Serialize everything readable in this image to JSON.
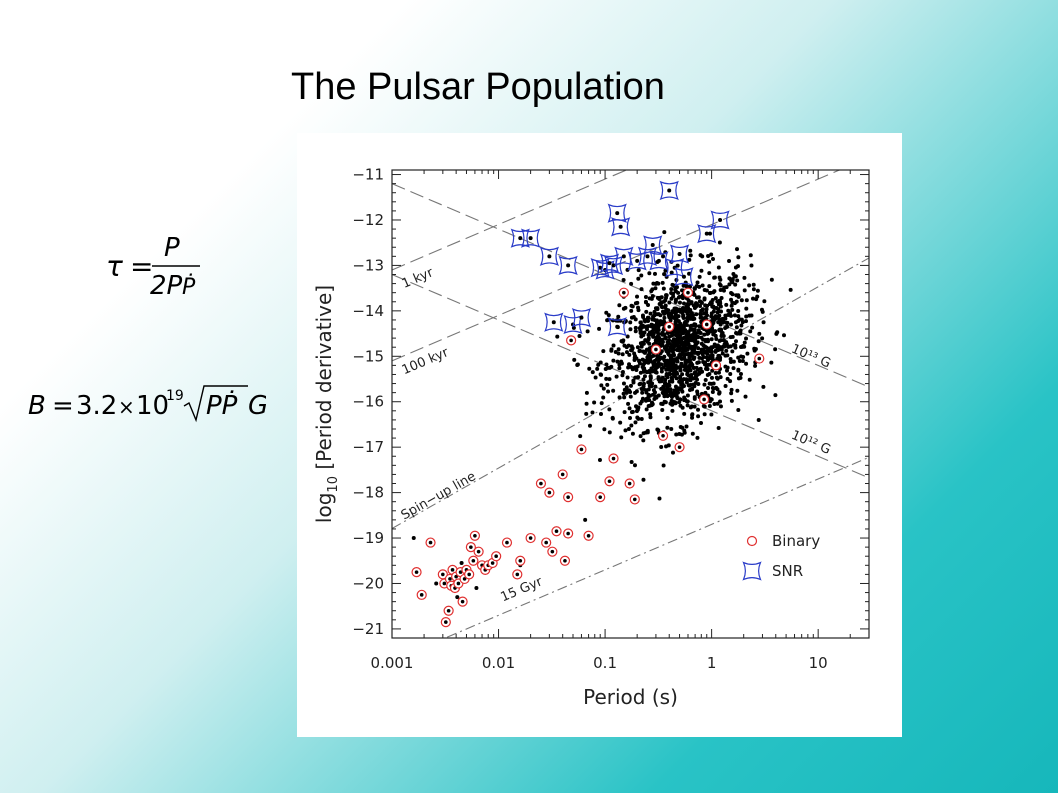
{
  "slide": {
    "title": "The Pulsar Population"
  },
  "formulas": {
    "tau": {
      "lhs": "τ",
      "eq": "=",
      "num": "P",
      "den": "2P",
      "dot": "Ṗ"
    },
    "field": {
      "lhs": "B",
      "eq": "=",
      "coef": "3.2",
      "times": "×",
      "base": "10",
      "exp": "19",
      "radicand": "PṖ",
      "unit": "G"
    }
  },
  "chart_data": {
    "type": "scatter",
    "x_scale": "log",
    "xlabel": "Period (s)",
    "ylabel": "log10 [Period derivative]",
    "xlim": [
      0.001,
      30
    ],
    "ylim": [
      -21.2,
      -10.9
    ],
    "x_ticks": [
      {
        "value": 0.001,
        "label": "0.001"
      },
      {
        "value": 0.01,
        "label": "0.01"
      },
      {
        "value": 0.1,
        "label": "0.1"
      },
      {
        "value": 1,
        "label": "1"
      },
      {
        "value": 10,
        "label": "10"
      }
    ],
    "y_ticks": [
      {
        "value": -11,
        "label": "−11"
      },
      {
        "value": -12,
        "label": "−12"
      },
      {
        "value": -13,
        "label": "−13"
      },
      {
        "value": -14,
        "label": "−14"
      },
      {
        "value": -15,
        "label": "−15"
      },
      {
        "value": -16,
        "label": "−16"
      },
      {
        "value": -17,
        "label": "−17"
      },
      {
        "value": -18,
        "label": "−18"
      },
      {
        "value": -19,
        "label": "−19"
      },
      {
        "value": -20,
        "label": "−20"
      },
      {
        "value": -21,
        "label": "−21"
      }
    ],
    "legend": {
      "position": "bottom-right",
      "entries": [
        {
          "name": "Binary",
          "marker": "circle",
          "color": "#e03030"
        },
        {
          "name": "SNR",
          "marker": "star",
          "color": "#2a3cc8"
        }
      ]
    },
    "reference_lines": [
      {
        "label": "1 kyr",
        "style": "dash",
        "slope": 1,
        "intercept": -10.1,
        "label_at": [
          0.0013,
          -13.5
        ]
      },
      {
        "label": "100 kyr",
        "style": "dash",
        "slope": 1,
        "intercept": -12.1,
        "label_at": [
          0.0013,
          -15.4
        ]
      },
      {
        "label": "15 Gyr",
        "style": "dashdot",
        "slope": 1,
        "intercept": -18.7,
        "label_at": [
          0.011,
          -20.4
        ]
      },
      {
        "label": "10¹³ G",
        "style": "dash",
        "slope": -1,
        "intercept": -14.2,
        "label_at": [
          5.5,
          -14.9
        ]
      },
      {
        "label": "10¹² G",
        "style": "dash",
        "slope": -1,
        "intercept": -16.2,
        "label_at": [
          5.5,
          -16.8
        ]
      },
      {
        "label": "Spin−up line",
        "style": "dashdot",
        "slope": 1.33,
        "intercept": -14.8,
        "label_at": [
          0.0013,
          -18.6
        ]
      }
    ],
    "series": [
      {
        "name": "Binary",
        "points": [
          [
            0.0017,
            -19.75
          ],
          [
            0.0019,
            -20.25
          ],
          [
            0.0023,
            -19.1
          ],
          [
            0.003,
            -19.8
          ],
          [
            0.0031,
            -20.0
          ],
          [
            0.0032,
            -20.85
          ],
          [
            0.0034,
            -20.6
          ],
          [
            0.0035,
            -19.9
          ],
          [
            0.0036,
            -20.05
          ],
          [
            0.0037,
            -19.7
          ],
          [
            0.0039,
            -20.1
          ],
          [
            0.004,
            -19.85
          ],
          [
            0.0042,
            -20.0
          ],
          [
            0.0044,
            -19.75
          ],
          [
            0.0046,
            -20.4
          ],
          [
            0.0048,
            -19.9
          ],
          [
            0.005,
            -19.7
          ],
          [
            0.0053,
            -19.8
          ],
          [
            0.0055,
            -19.2
          ],
          [
            0.0058,
            -19.5
          ],
          [
            0.006,
            -18.95
          ],
          [
            0.0065,
            -19.3
          ],
          [
            0.007,
            -19.6
          ],
          [
            0.0075,
            -19.7
          ],
          [
            0.008,
            -19.6
          ],
          [
            0.0088,
            -19.55
          ],
          [
            0.0095,
            -19.4
          ],
          [
            0.012,
            -19.1
          ],
          [
            0.015,
            -19.8
          ],
          [
            0.016,
            -19.5
          ],
          [
            0.02,
            -19.0
          ],
          [
            0.025,
            -17.8
          ],
          [
            0.028,
            -19.1
          ],
          [
            0.03,
            -18.0
          ],
          [
            0.032,
            -19.3
          ],
          [
            0.035,
            -18.85
          ],
          [
            0.04,
            -17.6
          ],
          [
            0.042,
            -19.5
          ],
          [
            0.045,
            -18.9
          ],
          [
            0.045,
            -18.1
          ],
          [
            0.048,
            -14.65
          ],
          [
            0.06,
            -17.05
          ],
          [
            0.07,
            -18.95
          ],
          [
            0.09,
            -18.1
          ],
          [
            0.11,
            -17.75
          ],
          [
            0.12,
            -17.25
          ],
          [
            0.15,
            -13.6
          ],
          [
            0.17,
            -17.8
          ],
          [
            0.19,
            -18.15
          ],
          [
            0.3,
            -14.85
          ],
          [
            0.35,
            -16.75
          ],
          [
            0.4,
            -14.35
          ],
          [
            0.5,
            -17.0
          ],
          [
            0.6,
            -13.6
          ],
          [
            0.85,
            -15.95
          ],
          [
            0.9,
            -14.3
          ],
          [
            1.1,
            -15.2
          ],
          [
            2.8,
            -15.05
          ]
        ]
      },
      {
        "name": "SNR",
        "points": [
          [
            0.016,
            -12.4
          ],
          [
            0.02,
            -12.4
          ],
          [
            0.03,
            -12.8
          ],
          [
            0.033,
            -14.25
          ],
          [
            0.045,
            -13.0
          ],
          [
            0.05,
            -14.3
          ],
          [
            0.06,
            -14.15
          ],
          [
            0.09,
            -13.05
          ],
          [
            0.1,
            -13.1
          ],
          [
            0.11,
            -12.95
          ],
          [
            0.12,
            -13.0
          ],
          [
            0.13,
            -14.35
          ],
          [
            0.13,
            -11.85
          ],
          [
            0.14,
            -12.15
          ],
          [
            0.15,
            -12.8
          ],
          [
            0.2,
            -12.9
          ],
          [
            0.25,
            -12.8
          ],
          [
            0.28,
            -12.55
          ],
          [
            0.32,
            -12.9
          ],
          [
            0.4,
            -11.35
          ],
          [
            0.45,
            -13.05
          ],
          [
            0.5,
            -12.75
          ],
          [
            0.55,
            -13.25
          ],
          [
            0.9,
            -12.3
          ],
          [
            1.2,
            -12.0
          ]
        ]
      }
    ],
    "normal_pulsars": {
      "description_count": 1500,
      "center_logP": -0.3,
      "center_logPdot": -14.8,
      "spread_logP": 0.33,
      "spread_logPdot": 0.8
    }
  }
}
